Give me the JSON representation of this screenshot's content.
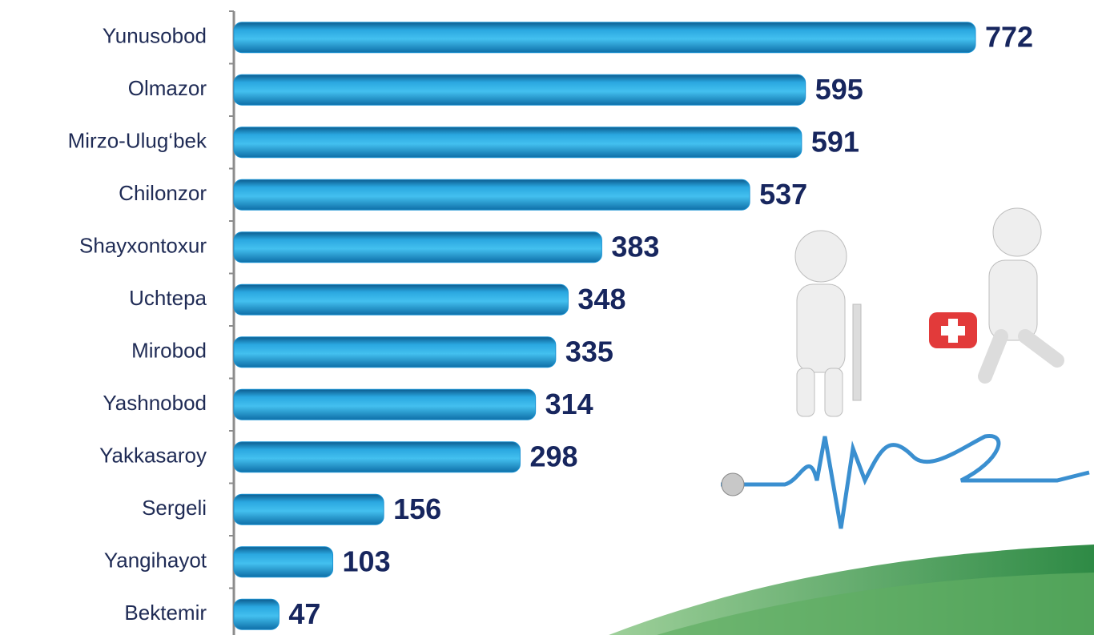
{
  "chart_data": {
    "type": "bar",
    "orientation": "horizontal",
    "categories": [
      "Yunusobod",
      "Olmazor",
      "Mirzo-Ulug‘bek",
      "Chilonzor",
      "Shayxontoxur",
      "Uchtepa",
      "Mirobod",
      "Yashnobod",
      "Yakkasaroy",
      "Sergeli",
      "Yangihayot",
      "Bektemir"
    ],
    "values": [
      772,
      595,
      591,
      537,
      383,
      348,
      335,
      314,
      298,
      156,
      103,
      47
    ],
    "color": "#1b93d3"
  }
}
